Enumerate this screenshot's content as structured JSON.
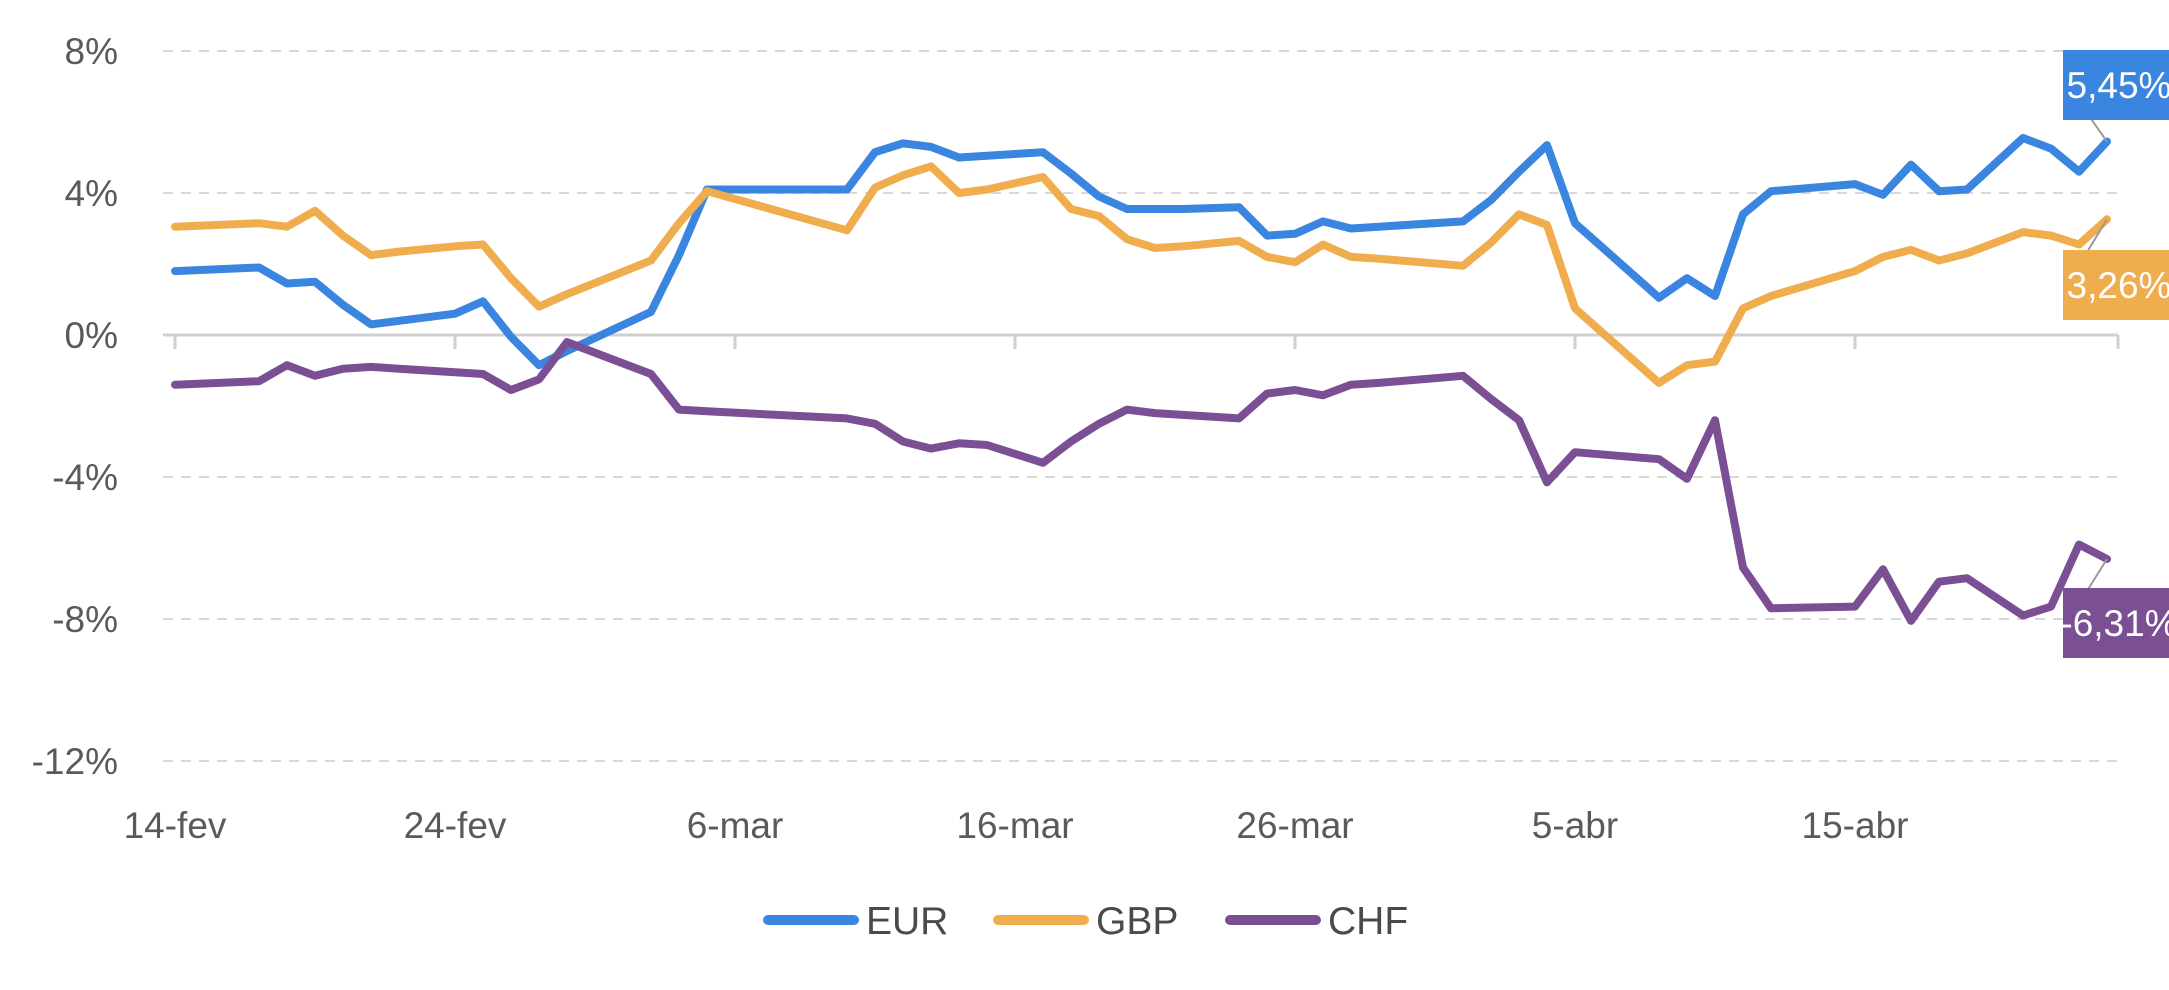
{
  "chart_data": {
    "type": "line",
    "title": "",
    "xlabel": "",
    "ylabel": "",
    "ylim": [
      -12,
      8
    ],
    "yticks": [
      {
        "value": 8,
        "label": "8%"
      },
      {
        "value": 4,
        "label": "4%"
      },
      {
        "value": 0,
        "label": "0%"
      },
      {
        "value": -4,
        "label": "-4%"
      },
      {
        "value": -8,
        "label": "-8%"
      },
      {
        "value": -12,
        "label": "-12%"
      }
    ],
    "xticks": [
      {
        "index": 0,
        "label": "14-fev"
      },
      {
        "index": 10,
        "label": "24-fev"
      },
      {
        "index": 20,
        "label": "6-mar"
      },
      {
        "index": 30,
        "label": "16-mar"
      },
      {
        "index": 40,
        "label": "26-mar"
      },
      {
        "index": 50,
        "label": "5-abr"
      },
      {
        "index": 60,
        "label": "15-abr"
      }
    ],
    "x_count": 70,
    "grid": true,
    "legend_position": "bottom-center",
    "x": [
      0,
      3,
      4,
      5,
      6,
      7,
      8,
      10,
      11,
      12,
      13,
      14,
      17,
      18,
      19,
      24,
      25,
      26,
      27,
      28,
      29,
      31,
      32,
      33,
      34,
      35,
      36,
      38,
      39,
      40,
      41,
      42,
      43,
      46,
      47,
      48,
      49,
      50,
      53,
      54,
      55,
      56,
      57,
      60,
      61,
      62,
      63,
      64,
      66,
      67,
      68,
      69
    ],
    "series": [
      {
        "name": "EUR",
        "color": "#3a85e0",
        "end_label": "5,45%",
        "values": [
          1.8,
          1.9,
          1.45,
          1.5,
          0.85,
          0.3,
          0.4,
          0.6,
          0.95,
          -0.05,
          -0.85,
          -0.45,
          0.65,
          2.25,
          4.1,
          4.1,
          5.15,
          5.4,
          5.3,
          5.0,
          5.05,
          5.15,
          4.55,
          3.9,
          3.55,
          3.55,
          3.55,
          3.6,
          2.8,
          2.85,
          3.2,
          3.0,
          3.05,
          3.2,
          3.8,
          4.6,
          5.35,
          3.15,
          1.05,
          1.6,
          1.1,
          3.4,
          4.05,
          4.25,
          3.95,
          4.8,
          4.05,
          4.1,
          5.55,
          5.25,
          4.6,
          5.45
        ]
      },
      {
        "name": "GBP",
        "color": "#f0ad4e",
        "end_label": "3,26%",
        "values": [
          3.05,
          3.15,
          3.05,
          3.5,
          2.8,
          2.25,
          2.35,
          2.5,
          2.55,
          1.6,
          0.8,
          1.15,
          2.1,
          3.15,
          4.05,
          2.95,
          4.15,
          4.5,
          4.75,
          4.0,
          4.1,
          4.45,
          3.55,
          3.35,
          2.7,
          2.45,
          2.5,
          2.65,
          2.2,
          2.05,
          2.55,
          2.2,
          2.15,
          1.95,
          2.6,
          3.4,
          3.1,
          0.75,
          -1.35,
          -0.85,
          -0.75,
          0.75,
          1.1,
          1.8,
          2.2,
          2.4,
          2.1,
          2.3,
          2.9,
          2.8,
          2.55,
          3.26
        ]
      },
      {
        "name": "CHF",
        "color": "#7b4f93",
        "end_label": "-6,31%",
        "values": [
          -1.4,
          -1.3,
          -0.85,
          -1.15,
          -0.95,
          -0.9,
          -0.95,
          -1.05,
          -1.1,
          -1.55,
          -1.25,
          -0.2,
          -1.1,
          -2.1,
          -2.15,
          -2.35,
          -2.5,
          -3.0,
          -3.2,
          -3.05,
          -3.1,
          -3.6,
          -3.0,
          -2.5,
          -2.1,
          -2.2,
          -2.25,
          -2.35,
          -1.65,
          -1.55,
          -1.7,
          -1.4,
          -1.35,
          -1.15,
          -1.8,
          -2.4,
          -4.15,
          -3.3,
          -3.5,
          -4.05,
          -2.4,
          -6.55,
          -7.7,
          -7.65,
          -6.6,
          -8.05,
          -6.95,
          -6.85,
          -7.9,
          -7.65,
          -5.9,
          -6.31
        ]
      }
    ]
  }
}
